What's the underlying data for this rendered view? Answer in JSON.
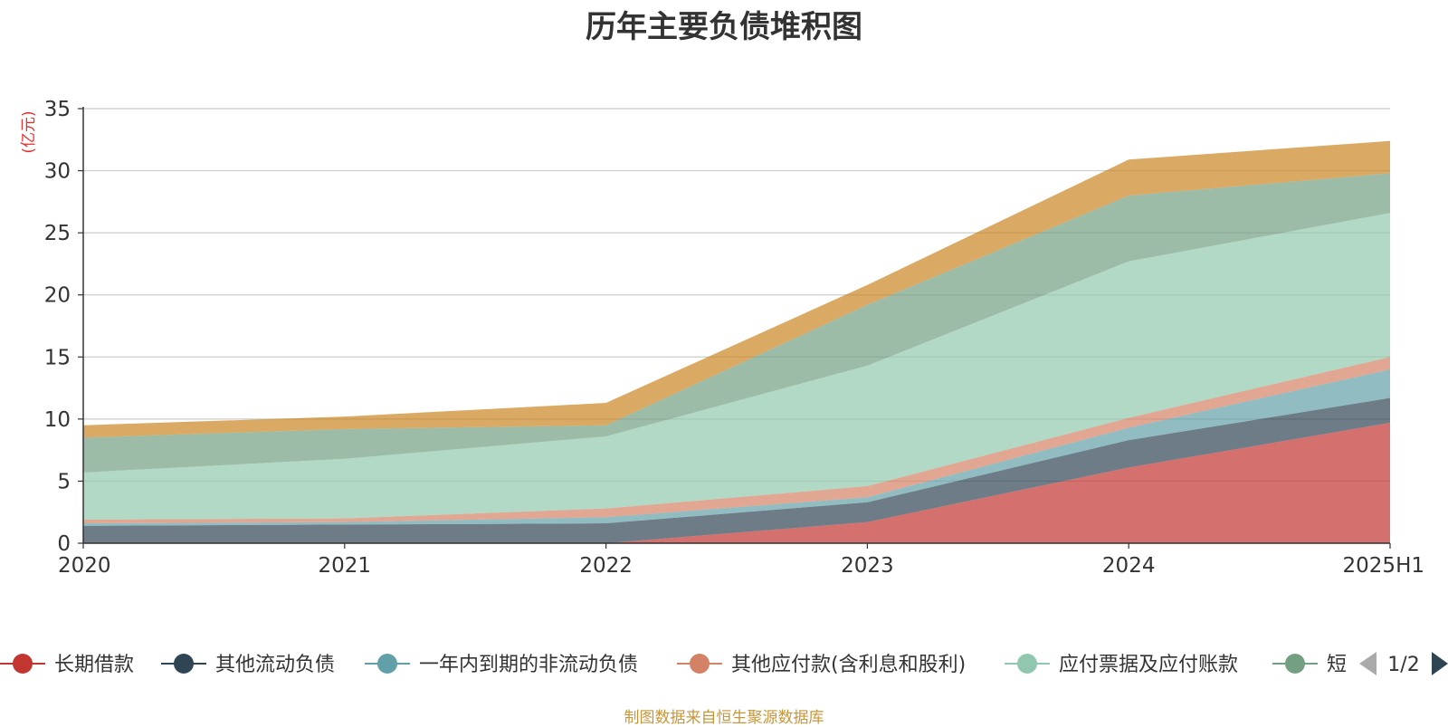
{
  "chart_data": {
    "type": "area",
    "title": "历年主要负债堆积图",
    "ylabel": "(亿元)",
    "xlabel": "",
    "ylim": [
      0,
      35
    ],
    "y_ticks": [
      0,
      5,
      10,
      15,
      20,
      25,
      30,
      35
    ],
    "categories": [
      "2020",
      "2021",
      "2022",
      "2023",
      "2024",
      "2025H1"
    ],
    "stacked": true,
    "grid": true,
    "legend_position": "bottom",
    "series": [
      {
        "name": "长期借款",
        "color": "#c23531",
        "values": [
          0,
          0,
          0,
          1.7,
          6.1,
          9.7
        ]
      },
      {
        "name": "其他流动负债",
        "color": "#2f4554",
        "values": [
          1.4,
          1.5,
          1.6,
          1.6,
          2.2,
          2.0
        ]
      },
      {
        "name": "一年内到期的非流动负债",
        "color": "#61a0a8",
        "values": [
          0.2,
          0.2,
          0.5,
          0.4,
          1.0,
          2.3
        ]
      },
      {
        "name": "其他应付款(含利息和股利)",
        "color": "#d48265",
        "values": [
          0.3,
          0.3,
          0.7,
          0.9,
          0.8,
          1.0
        ]
      },
      {
        "name": "应付票据及应付账款",
        "color": "#91c7ae",
        "values": [
          3.8,
          4.8,
          5.8,
          9.7,
          12.6,
          11.6
        ]
      },
      {
        "name": "短期借款",
        "color": "#749f83",
        "values": [
          2.8,
          2.4,
          0.9,
          4.9,
          5.3,
          3.2
        ]
      },
      {
        "name": "",
        "color": "#ca8622",
        "values": [
          1.0,
          1.0,
          1.8,
          1.6,
          2.9,
          2.6
        ]
      }
    ]
  },
  "legend": {
    "items": [
      {
        "label": "长期借款",
        "color": "#c23531"
      },
      {
        "label": "其他流动负债",
        "color": "#2f4554"
      },
      {
        "label": "一年内到期的非流动负债",
        "color": "#61a0a8"
      },
      {
        "label": "其他应付款(含利息和股利)",
        "color": "#d48265"
      },
      {
        "label": "应付票据及应付账款",
        "color": "#91c7ae"
      },
      {
        "label": "短",
        "color": "#749f83"
      }
    ],
    "page_indicator": "1/2",
    "prev_icon": "triangle-left",
    "next_icon": "triangle-right"
  },
  "source_note": "制图数据来自恒生聚源数据库"
}
